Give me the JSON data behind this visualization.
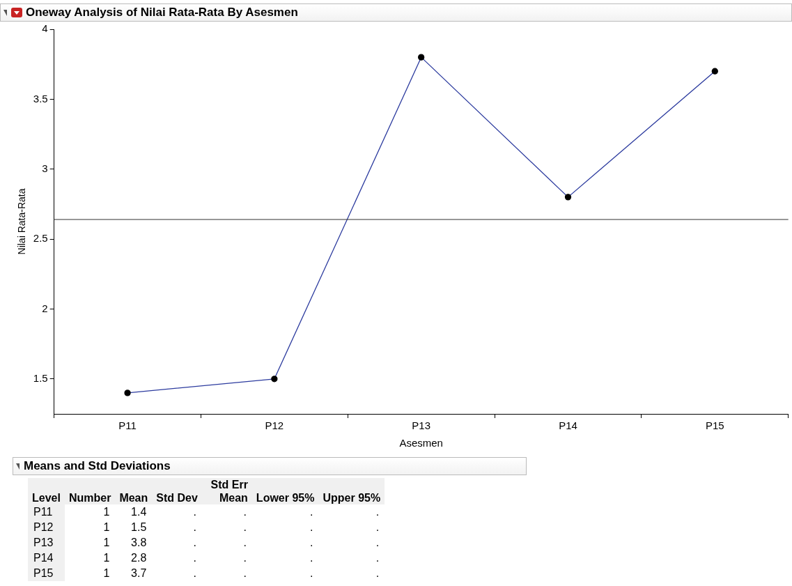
{
  "chart_data": [
    {
      "type": "line",
      "title": "Oneway Analysis of Nilai Rata-Rata By Asesmen",
      "xlabel": "Asesmen",
      "ylabel": "Nilai Rata-Rata",
      "categories": [
        "P11",
        "P12",
        "P13",
        "P14",
        "P15"
      ],
      "series": [
        {
          "color": "#2b3a9e",
          "values": [
            1.4,
            1.5,
            3.8,
            2.8,
            3.7
          ]
        }
      ],
      "marker": "circle",
      "ylim": [
        1.25,
        4
      ],
      "yticks": [
        1.5,
        2,
        2.5,
        3,
        3.5,
        4
      ],
      "grid": false,
      "legend": false,
      "ref_lines": [
        {
          "axis": "y",
          "value": 2.64,
          "color": "#333333"
        }
      ]
    },
    {
      "type": "other",
      "title": "Means and Std Deviations",
      "xlabel": "Level",
      "data_labels": true,
      "categories": [
        "P11",
        "P12",
        "P13",
        "P14",
        "P15"
      ],
      "series": [
        {
          "name": "Number",
          "values": [
            1,
            1,
            1,
            1,
            1
          ]
        },
        {
          "name": "Mean",
          "values": [
            1.4,
            1.5,
            3.8,
            2.8,
            3.7
          ]
        },
        {
          "name": "Std Dev",
          "values": [
            null,
            null,
            null,
            null,
            null
          ],
          "value_labels": [
            ".",
            ".",
            ".",
            ".",
            "."
          ]
        },
        {
          "name": "Std Err Mean",
          "values": [
            null,
            null,
            null,
            null,
            null
          ],
          "value_labels": [
            ".",
            ".",
            ".",
            ".",
            "."
          ]
        },
        {
          "name": "Lower 95%",
          "values": [
            null,
            null,
            null,
            null,
            null
          ],
          "value_labels": [
            ".",
            ".",
            ".",
            ".",
            "."
          ]
        },
        {
          "name": "Upper 95%",
          "values": [
            null,
            null,
            null,
            null,
            null
          ],
          "value_labels": [
            ".",
            ".",
            ".",
            ".",
            "."
          ]
        }
      ]
    }
  ]
}
